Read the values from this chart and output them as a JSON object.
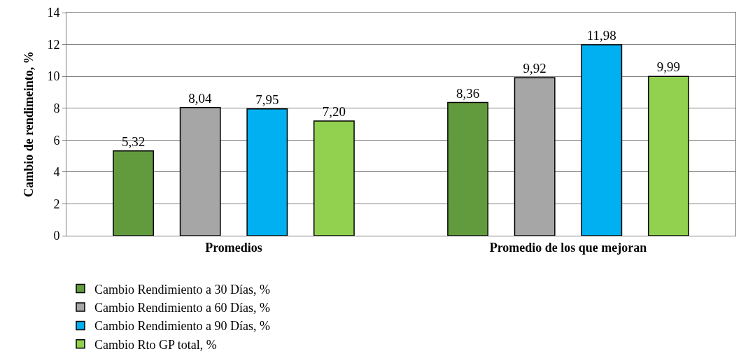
{
  "chart_data": {
    "type": "bar",
    "ylabel": "Cambio de rendimeinto, %",
    "categories": [
      "Promedios",
      "Promedio de los que mejoran"
    ],
    "series": [
      {
        "name": "Cambio Rendimiento a 30 Días, %",
        "color": "#629b3e",
        "values": [
          5.32,
          8.36
        ],
        "value_labels": [
          "5,32",
          "8,36"
        ]
      },
      {
        "name": "Cambio Rendimiento a 60 Días, %",
        "color": "#a6a6a6",
        "values": [
          8.04,
          9.92
        ],
        "value_labels": [
          "8,04",
          "9,92"
        ]
      },
      {
        "name": "Cambio Rendimiento a 90 Días, %",
        "color": "#00b0f0",
        "values": [
          7.95,
          11.98
        ],
        "value_labels": [
          "7,95",
          "11,98"
        ]
      },
      {
        "name": "Cambio Rto GP total, %",
        "color": "#92d050",
        "values": [
          7.2,
          9.99
        ],
        "value_labels": [
          "7,20",
          "9,99"
        ]
      }
    ],
    "ylim": [
      0,
      14
    ],
    "yticks": [
      0,
      2,
      4,
      6,
      8,
      10,
      12,
      14
    ],
    "grid": "y",
    "legend": "bottom"
  }
}
